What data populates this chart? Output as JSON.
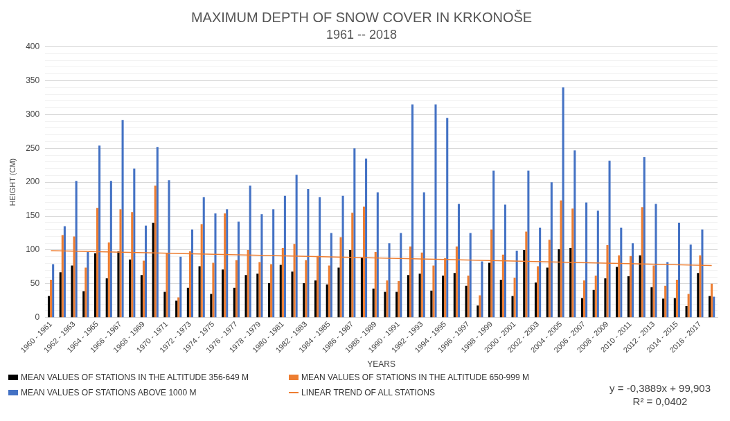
{
  "chart_data": {
    "type": "bar",
    "title": "MAXIMUM DEPTH OF SNOW COVER IN KRKONOŠE",
    "subtitle": "1961 -- 2018",
    "xlabel": "YEARS",
    "ylabel": "HEIGHT (CM)",
    "categories": [
      "1960 - 1961",
      null,
      "1962 - 1963",
      null,
      "1964 - 1965",
      null,
      "1966 - 1967",
      null,
      "1968 - 1969",
      null,
      "1970 - 1971",
      null,
      "1972 - 1973",
      null,
      "1974 - 1975",
      null,
      "1976 - 1977",
      null,
      "1978 - 1979",
      null,
      "1980 - 1981",
      null,
      "1982 - 1983",
      null,
      "1984 - 1985",
      null,
      "1986 - 1987",
      null,
      "1988 - 1989",
      null,
      "1990 - 1991",
      null,
      "1992 - 1993",
      null,
      "1994 - 1995",
      null,
      "1996 - 1997",
      null,
      "1998 - 1999",
      null,
      "2000 - 2001",
      null,
      "2002 - 2003",
      null,
      "2004 - 2005",
      null,
      "2006 - 2007",
      null,
      "2008 - 2009",
      null,
      "2010 - 2011",
      null,
      "2012 - 2013",
      null,
      "2014 - 2015",
      null,
      "2016 - 2017",
      null
    ],
    "series": [
      {
        "name": "MEAN VALUES OF STATIONS IN THE ALTITUDE 356-649 M",
        "color": "#000000",
        "values": [
          32,
          67,
          77,
          39,
          95,
          58,
          98,
          86,
          63,
          140,
          38,
          25,
          44,
          76,
          35,
          71,
          44,
          63,
          65,
          51,
          78,
          68,
          51,
          55,
          49,
          74,
          100,
          89,
          43,
          38,
          38,
          63,
          65,
          40,
          62,
          66,
          47,
          18,
          81,
          56,
          32,
          100,
          52,
          74,
          101,
          103,
          29,
          41,
          58,
          75,
          61,
          92,
          45,
          28,
          29,
          17,
          66,
          32
        ]
      },
      {
        "name": "MEAN VALUES OF STATIONS IN THE ALTITUDE 650-999 M",
        "color": "#ed7d31",
        "values": [
          56,
          122,
          120,
          74,
          162,
          111,
          160,
          156,
          84,
          195,
          95,
          30,
          98,
          138,
          81,
          154,
          85,
          100,
          82,
          79,
          103,
          109,
          85,
          91,
          77,
          119,
          155,
          164,
          97,
          55,
          54,
          105,
          96,
          77,
          88,
          105,
          62,
          33,
          130,
          93,
          59,
          127,
          76,
          115,
          173,
          161,
          55,
          62,
          107,
          92,
          91,
          163,
          77,
          47,
          56,
          35,
          92,
          50
        ]
      },
      {
        "name": "MEAN VALUES OF STATIONS ABOVE 1000 M",
        "color": "#4472c4",
        "values": [
          79,
          135,
          202,
          97,
          254,
          202,
          292,
          220,
          136,
          252,
          203,
          90,
          130,
          178,
          154,
          160,
          142,
          195,
          153,
          160,
          180,
          211,
          190,
          178,
          125,
          180,
          250,
          235,
          185,
          110,
          125,
          315,
          185,
          315,
          295,
          168,
          125,
          83,
          217,
          167,
          99,
          217,
          133,
          200,
          340,
          247,
          170,
          158,
          232,
          133,
          110,
          237,
          168,
          82,
          140,
          108,
          130,
          31
        ]
      },
      {
        "name": "LINEAR TREND OF ALL STATIONS",
        "type": "line",
        "color": "#ed7d31",
        "values": [
          99,
          null,
          null,
          null,
          null,
          null,
          null,
          null,
          null,
          null,
          null,
          null,
          null,
          null,
          null,
          null,
          null,
          null,
          null,
          null,
          null,
          null,
          null,
          null,
          null,
          null,
          null,
          null,
          null,
          null,
          null,
          null,
          null,
          null,
          null,
          null,
          null,
          null,
          null,
          null,
          null,
          null,
          null,
          null,
          null,
          null,
          null,
          null,
          null,
          null,
          null,
          null,
          null,
          null,
          null,
          null,
          null,
          77
        ]
      }
    ],
    "ylim": [
      0,
      400
    ],
    "yticks": [
      0,
      {
        "value": 10,
        "label": null
      },
      {
        "value": 20,
        "label": null
      },
      {
        "value": 30,
        "label": null
      },
      {
        "value": 40,
        "label": null
      },
      50,
      {
        "value": 60,
        "label": null
      },
      {
        "value": 70,
        "label": null
      },
      {
        "value": 80,
        "label": null
      },
      {
        "value": 90,
        "label": null
      },
      100,
      {
        "value": 110,
        "label": null
      },
      {
        "value": 120,
        "label": null
      },
      {
        "value": 130,
        "label": null
      },
      {
        "value": 140,
        "label": null
      },
      150,
      {
        "value": 160,
        "label": null
      },
      {
        "value": 170,
        "label": null
      },
      {
        "value": 180,
        "label": null
      },
      {
        "value": 190,
        "label": null
      },
      200,
      {
        "value": 210,
        "label": null
      },
      {
        "value": 220,
        "label": null
      },
      {
        "value": 230,
        "label": null
      },
      {
        "value": 240,
        "label": null
      },
      250,
      {
        "value": 260,
        "label": null
      },
      {
        "value": 270,
        "label": null
      },
      {
        "value": 280,
        "label": null
      },
      {
        "value": 290,
        "label": null
      },
      300,
      {
        "value": 310,
        "label": null
      },
      {
        "value": 320,
        "label": null
      },
      {
        "value": 330,
        "label": null
      },
      {
        "value": 340,
        "label": null
      },
      350,
      {
        "value": 360,
        "label": null
      },
      {
        "value": 370,
        "label": null
      },
      {
        "value": 380,
        "label": null
      },
      {
        "value": 390,
        "label": null
      },
      400
    ],
    "grid": "y",
    "legend": "bottom",
    "marker": "none",
    "annotations": [
      "y = -0,3889x + 99,903",
      "R² = 0,0402"
    ]
  }
}
